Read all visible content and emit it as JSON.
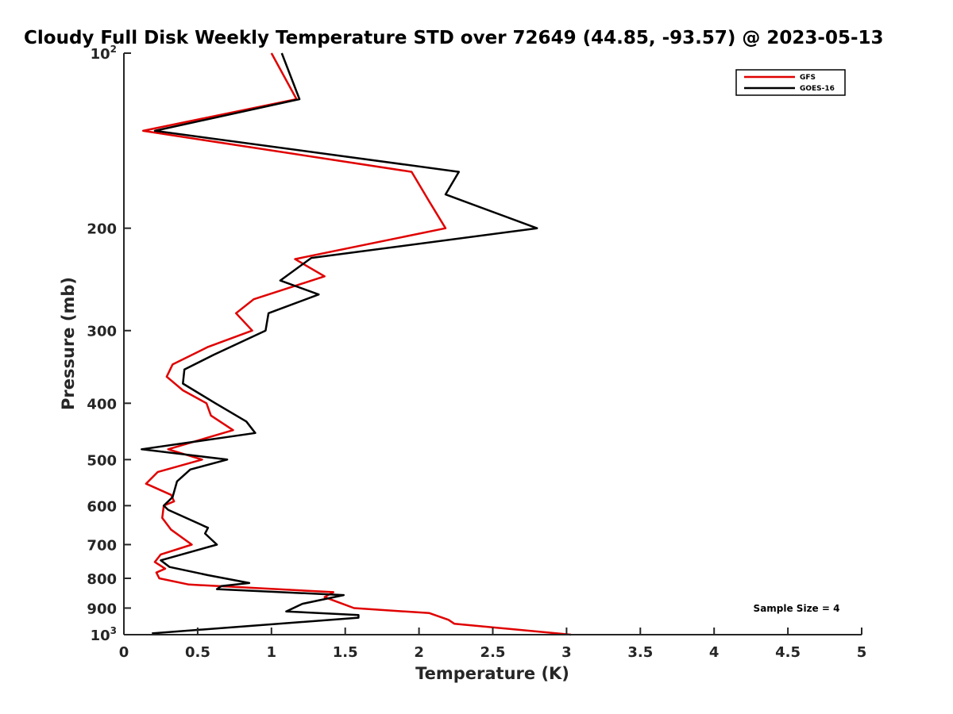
{
  "chart_data": {
    "type": "line",
    "title": "Cloudy Full Disk Weekly Temperature STD over 72649 (44.85, -93.57) @ 2023-05-13",
    "xlabel": "Temperature (K)",
    "ylabel": "Pressure (mb)",
    "xlim": [
      0,
      5
    ],
    "ylim": [
      100,
      1000
    ],
    "y_scale": "log",
    "y_reversed": true,
    "x_ticks": [
      "0",
      "0.5",
      "1",
      "1.5",
      "2",
      "2.5",
      "3",
      "3.5",
      "4",
      "4.5",
      "5"
    ],
    "y_ticks": [
      {
        "value": 100,
        "base": "10",
        "exp": "2"
      },
      {
        "value": 200,
        "label": "200"
      },
      {
        "value": 300,
        "label": "300"
      },
      {
        "value": 400,
        "label": "400"
      },
      {
        "value": 500,
        "label": "500"
      },
      {
        "value": 600,
        "label": "600"
      },
      {
        "value": 700,
        "label": "700"
      },
      {
        "value": 800,
        "label": "800"
      },
      {
        "value": 900,
        "label": "900"
      },
      {
        "value": 1000,
        "base": "10",
        "exp": "3"
      }
    ],
    "grid": false,
    "legend_position": "top-right",
    "annotation": "Sample Size = 4",
    "series": [
      {
        "name": "GFS",
        "color": "#e00000",
        "points": [
          {
            "x": 1.0,
            "p": 100
          },
          {
            "x": 1.17,
            "p": 120
          },
          {
            "x": 0.13,
            "p": 136
          },
          {
            "x": 1.95,
            "p": 160
          },
          {
            "x": 2.07,
            "p": 180
          },
          {
            "x": 2.18,
            "p": 200
          },
          {
            "x": 1.16,
            "p": 226
          },
          {
            "x": 1.36,
            "p": 242
          },
          {
            "x": 0.88,
            "p": 265
          },
          {
            "x": 0.76,
            "p": 280
          },
          {
            "x": 0.87,
            "p": 300
          },
          {
            "x": 0.57,
            "p": 320
          },
          {
            "x": 0.33,
            "p": 343
          },
          {
            "x": 0.29,
            "p": 360
          },
          {
            "x": 0.4,
            "p": 380
          },
          {
            "x": 0.56,
            "p": 400
          },
          {
            "x": 0.59,
            "p": 420
          },
          {
            "x": 0.74,
            "p": 445
          },
          {
            "x": 0.3,
            "p": 480
          },
          {
            "x": 0.53,
            "p": 500
          },
          {
            "x": 0.23,
            "p": 525
          },
          {
            "x": 0.15,
            "p": 550
          },
          {
            "x": 0.32,
            "p": 575
          },
          {
            "x": 0.34,
            "p": 590
          },
          {
            "x": 0.27,
            "p": 600
          },
          {
            "x": 0.26,
            "p": 630
          },
          {
            "x": 0.32,
            "p": 660
          },
          {
            "x": 0.46,
            "p": 700
          },
          {
            "x": 0.25,
            "p": 728
          },
          {
            "x": 0.21,
            "p": 750
          },
          {
            "x": 0.28,
            "p": 770
          },
          {
            "x": 0.22,
            "p": 782
          },
          {
            "x": 0.24,
            "p": 800
          },
          {
            "x": 0.44,
            "p": 820
          },
          {
            "x": 1.42,
            "p": 845
          },
          {
            "x": 1.36,
            "p": 862
          },
          {
            "x": 1.56,
            "p": 900
          },
          {
            "x": 2.07,
            "p": 918
          },
          {
            "x": 2.2,
            "p": 943
          },
          {
            "x": 2.24,
            "p": 958
          },
          {
            "x": 3.03,
            "p": 1000
          }
        ]
      },
      {
        "name": "GOES-16",
        "color": "#000000",
        "points": [
          {
            "x": 1.07,
            "p": 100
          },
          {
            "x": 1.19,
            "p": 120
          },
          {
            "x": 0.21,
            "p": 136
          },
          {
            "x": 2.27,
            "p": 160
          },
          {
            "x": 2.18,
            "p": 175
          },
          {
            "x": 2.8,
            "p": 200
          },
          {
            "x": 1.27,
            "p": 225
          },
          {
            "x": 1.06,
            "p": 246
          },
          {
            "x": 1.32,
            "p": 260
          },
          {
            "x": 0.98,
            "p": 280
          },
          {
            "x": 0.96,
            "p": 300
          },
          {
            "x": 0.61,
            "p": 330
          },
          {
            "x": 0.41,
            "p": 350
          },
          {
            "x": 0.4,
            "p": 370
          },
          {
            "x": 0.62,
            "p": 400
          },
          {
            "x": 0.83,
            "p": 430
          },
          {
            "x": 0.89,
            "p": 450
          },
          {
            "x": 0.12,
            "p": 480
          },
          {
            "x": 0.7,
            "p": 500
          },
          {
            "x": 0.45,
            "p": 520
          },
          {
            "x": 0.36,
            "p": 545
          },
          {
            "x": 0.33,
            "p": 580
          },
          {
            "x": 0.27,
            "p": 600
          },
          {
            "x": 0.3,
            "p": 610
          },
          {
            "x": 0.57,
            "p": 655
          },
          {
            "x": 0.55,
            "p": 670
          },
          {
            "x": 0.63,
            "p": 700
          },
          {
            "x": 0.25,
            "p": 745
          },
          {
            "x": 0.31,
            "p": 765
          },
          {
            "x": 0.57,
            "p": 790
          },
          {
            "x": 0.85,
            "p": 815
          },
          {
            "x": 0.66,
            "p": 825
          },
          {
            "x": 0.63,
            "p": 835
          },
          {
            "x": 1.49,
            "p": 855
          },
          {
            "x": 1.21,
            "p": 885
          },
          {
            "x": 1.1,
            "p": 912
          },
          {
            "x": 1.59,
            "p": 925
          },
          {
            "x": 1.59,
            "p": 935
          },
          {
            "x": 0.19,
            "p": 995
          }
        ]
      }
    ]
  }
}
